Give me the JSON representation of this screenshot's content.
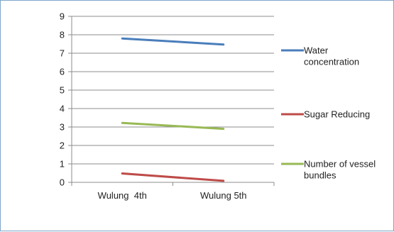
{
  "chart_data": {
    "type": "line",
    "title": "",
    "xlabel": "",
    "ylabel": "",
    "categories": [
      "Wulung  4th",
      "Wulung 5th"
    ],
    "ylim": [
      0,
      9
    ],
    "yticks": [
      0,
      1,
      2,
      3,
      4,
      5,
      6,
      7,
      8,
      9
    ],
    "grid": true,
    "legend_position": "right",
    "series": [
      {
        "name": "Water concentration",
        "name_lines": [
          "Water",
          "concentration"
        ],
        "values": [
          7.8,
          7.47
        ],
        "color": "#4a7ebb"
      },
      {
        "name": "Sugar Reducing",
        "name_lines": [
          "Sugar Reducing"
        ],
        "values": [
          0.48,
          0.08
        ],
        "color": "#be4b48"
      },
      {
        "name": "Number of vessel bundles",
        "name_lines": [
          "Number of vessel",
          "bundles"
        ],
        "values": [
          3.22,
          2.9
        ],
        "color": "#98b954"
      }
    ]
  }
}
